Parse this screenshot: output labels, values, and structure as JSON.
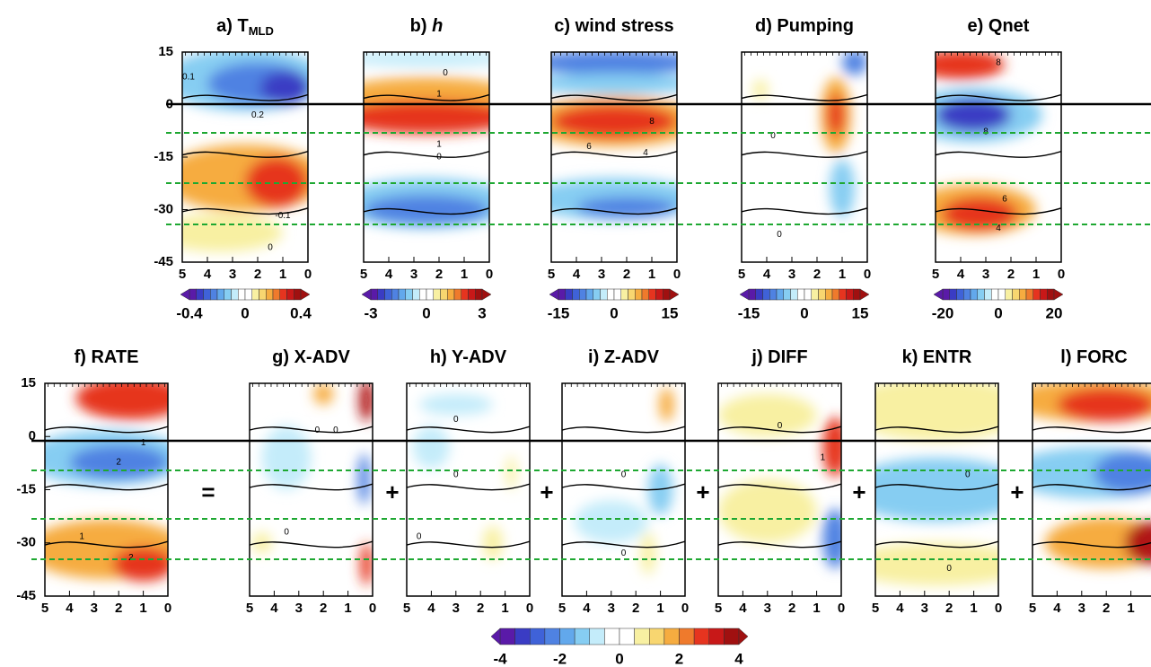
{
  "top_row": {
    "y_ticks": [
      15,
      0,
      -15,
      -30,
      -45
    ],
    "x_ticks": [
      5,
      4,
      3,
      2,
      1,
      0
    ],
    "panels": [
      {
        "title": "a) T",
        "title_sub": "MLD",
        "colorbar": [
          -0.4,
          0,
          0.4
        ],
        "contour_labels": [
          "0.1",
          "0.2",
          "-0.1",
          "0"
        ]
      },
      {
        "title": "b) ",
        "title_italic": "h",
        "colorbar": [
          -3,
          0,
          3
        ],
        "contour_labels": [
          "0",
          "1",
          "1",
          "0"
        ]
      },
      {
        "title": "c) wind stress",
        "colorbar": [
          -15,
          0,
          15
        ],
        "contour_labels": [
          "8",
          "6",
          "4"
        ]
      },
      {
        "title": "d) Pumping",
        "colorbar": [
          -15,
          0,
          15
        ],
        "contour_labels": [
          "0",
          "0"
        ]
      },
      {
        "title": "e) Qnet",
        "colorbar": [
          -20,
          0,
          20
        ],
        "contour_labels": [
          "8",
          "8",
          "6",
          "4"
        ]
      }
    ]
  },
  "bottom_row": {
    "y_ticks": [
      15,
      0,
      -15,
      -30,
      -45
    ],
    "x_ticks": [
      5,
      4,
      3,
      2,
      1,
      0
    ],
    "operators": [
      "=",
      "+",
      "+",
      "+",
      "+",
      "+"
    ],
    "colorbar": [
      -4,
      -2,
      0,
      2,
      4
    ],
    "panels": [
      {
        "title": "f) RATE",
        "contour_labels": [
          "1",
          "2",
          "1",
          "2"
        ]
      },
      {
        "title": "g) X-ADV",
        "contour_labels": [
          "0",
          "0",
          "0"
        ]
      },
      {
        "title": "h) Y-ADV",
        "contour_labels": [
          "0",
          "0",
          "0"
        ]
      },
      {
        "title": "i) Z-ADV",
        "contour_labels": [
          "0",
          "0"
        ]
      },
      {
        "title": "j) DIFF",
        "contour_labels": [
          "0",
          "1"
        ]
      },
      {
        "title": "k) ENTR",
        "contour_labels": [
          "0",
          "0"
        ]
      },
      {
        "title": "l) FORC",
        "contour_labels": []
      }
    ]
  }
}
